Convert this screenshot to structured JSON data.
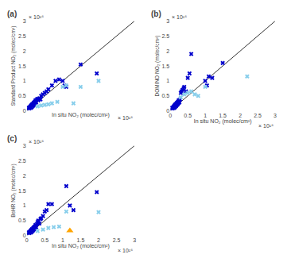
{
  "chart_data": [
    {
      "type": "scatter",
      "title": "(a)",
      "x_label": "In situ NO₂ (molec/cm²)",
      "y_label": "Standard Product NO₂ (molec/cm²)",
      "annotations": [
        "× 10¹⁶",
        "× 10¹⁶"
      ],
      "xlim": [
        0,
        3.0
      ],
      "ylim": [
        0,
        3.0
      ],
      "xticks": [
        0,
        0.5,
        1,
        1.5,
        2,
        2.5,
        3
      ],
      "yticks": [
        0,
        0.5,
        1,
        1.5,
        2,
        2.5,
        3
      ],
      "grid": false,
      "tick_labels": "y",
      "series": [
        {
          "type": "line",
          "color": "#333333",
          "x": [
            0,
            3.0
          ],
          "values": [
            0,
            3.0
          ]
        },
        {
          "type": "scatter",
          "marker": "x",
          "color": "#0000CC",
          "x": [
            0.05,
            0.07,
            0.08,
            0.1,
            0.11,
            0.12,
            0.13,
            0.14,
            0.15,
            0.16,
            0.17,
            0.18,
            0.19,
            0.2,
            0.21,
            0.22,
            0.23,
            0.24,
            0.25,
            0.26,
            0.28,
            0.3,
            0.32,
            0.35,
            0.38,
            0.4,
            0.45,
            0.5,
            0.55,
            0.6,
            0.7,
            0.8,
            0.9,
            1.0,
            1.05,
            1.1,
            1.5,
            1.95
          ],
          "values": [
            0.1,
            0.08,
            0.12,
            0.15,
            0.1,
            0.18,
            0.12,
            0.2,
            0.22,
            0.15,
            0.18,
            0.25,
            0.2,
            0.28,
            0.22,
            0.3,
            0.25,
            0.35,
            0.32,
            0.28,
            0.38,
            0.4,
            0.35,
            0.42,
            0.38,
            0.5,
            0.55,
            0.6,
            0.65,
            0.72,
            0.85,
            1.0,
            1.05,
            1.0,
            0.85,
            0.8,
            1.55,
            1.25
          ]
        },
        {
          "type": "scatter",
          "marker": "x",
          "color": "#87CEEB",
          "x": [
            0.3,
            0.4,
            0.5,
            0.6,
            0.7,
            0.85,
            1.0,
            1.1,
            1.3,
            1.5,
            2.0
          ],
          "values": [
            0.15,
            0.18,
            0.2,
            0.22,
            0.25,
            0.3,
            0.8,
            0.85,
            0.25,
            0.8,
            1.0
          ]
        }
      ]
    },
    {
      "type": "scatter",
      "title": "(b)",
      "x_label": "In situ NO₂ (molec/cm²)",
      "y_label": "DOMINO NO₂ (molec/cm²)",
      "annotations": [
        "× 10¹⁶",
        "× 10¹⁶"
      ],
      "xlim": [
        0,
        3.0
      ],
      "ylim": [
        0,
        3.0
      ],
      "xticks": [
        0,
        0.5,
        1,
        1.5,
        2,
        2.5,
        3
      ],
      "yticks": [
        0,
        0.5,
        1,
        1.5,
        2,
        2.5,
        3
      ],
      "grid": false,
      "series": [
        {
          "type": "line",
          "color": "#333333",
          "x": [
            0,
            3.0
          ],
          "values": [
            0,
            3.0
          ]
        },
        {
          "type": "scatter",
          "marker": "x",
          "color": "#0000CC",
          "x": [
            0.05,
            0.07,
            0.08,
            0.1,
            0.11,
            0.12,
            0.13,
            0.14,
            0.15,
            0.16,
            0.17,
            0.18,
            0.19,
            0.2,
            0.21,
            0.22,
            0.23,
            0.24,
            0.25,
            0.26,
            0.28,
            0.3,
            0.32,
            0.35,
            0.38,
            0.4,
            0.45,
            0.5,
            0.55,
            0.6,
            1.0,
            1.05,
            1.1,
            1.2,
            1.5
          ],
          "values": [
            0.1,
            0.08,
            0.12,
            0.15,
            0.1,
            0.18,
            0.12,
            0.2,
            0.22,
            0.15,
            0.18,
            0.25,
            0.2,
            0.28,
            0.22,
            0.3,
            0.25,
            0.35,
            0.32,
            0.28,
            0.38,
            0.6,
            0.65,
            0.7,
            0.75,
            0.8,
            0.65,
            1.1,
            1.25,
            1.9,
            1.0,
            0.85,
            1.15,
            1.1,
            1.6
          ]
        },
        {
          "type": "scatter",
          "marker": "x",
          "color": "#87CEEB",
          "x": [
            0.3,
            0.4,
            0.5,
            0.6,
            0.7,
            0.8,
            1.0,
            2.2
          ],
          "values": [
            0.45,
            0.55,
            0.6,
            0.65,
            0.55,
            0.5,
            0.8,
            1.15
          ]
        }
      ]
    },
    {
      "type": "scatter",
      "title": "(c)",
      "x_label": "In situ NO₂ (molec/cm²)",
      "y_label": "BeHR NO₂ (molec/cm²)",
      "annotations": [
        "× 10¹⁶",
        "× 10¹⁶"
      ],
      "xlim": [
        0,
        3.0
      ],
      "ylim": [
        0,
        3.0
      ],
      "xticks": [
        0,
        0.5,
        1,
        1.5,
        2,
        2.5,
        3
      ],
      "yticks": [
        0,
        0.5,
        1,
        1.5,
        2,
        2.5,
        3
      ],
      "grid": false,
      "series": [
        {
          "type": "line",
          "color": "#333333",
          "x": [
            0,
            3.0
          ],
          "values": [
            0,
            3.0
          ]
        },
        {
          "type": "scatter",
          "marker": "x",
          "color": "#0000CC",
          "x": [
            0.05,
            0.07,
            0.08,
            0.1,
            0.11,
            0.12,
            0.13,
            0.14,
            0.15,
            0.16,
            0.17,
            0.18,
            0.19,
            0.2,
            0.21,
            0.22,
            0.23,
            0.24,
            0.25,
            0.26,
            0.28,
            0.3,
            0.32,
            0.35,
            0.38,
            0.4,
            0.45,
            0.5,
            0.55,
            0.6,
            0.7,
            1.1,
            1.2,
            1.3,
            1.95
          ],
          "values": [
            0.1,
            0.08,
            0.12,
            0.15,
            0.1,
            0.18,
            0.12,
            0.2,
            0.22,
            0.15,
            0.18,
            0.25,
            0.2,
            0.28,
            0.22,
            0.3,
            0.25,
            0.35,
            0.32,
            0.28,
            0.38,
            0.45,
            0.5,
            0.4,
            0.55,
            0.58,
            0.65,
            0.8,
            0.85,
            1.05,
            1.05,
            1.65,
            1.0,
            0.85,
            1.45
          ]
        },
        {
          "type": "scatter",
          "marker": "x",
          "color": "#87CEEB",
          "x": [
            0.3,
            0.45,
            0.6,
            0.75,
            0.9,
            1.1,
            2.0
          ],
          "values": [
            0.15,
            0.2,
            0.25,
            0.28,
            0.3,
            0.8,
            0.78
          ]
        },
        {
          "type": "scatter",
          "marker": "triangle",
          "color": "#FFA500",
          "x": [
            1.2
          ],
          "values": [
            0.16
          ]
        }
      ]
    }
  ]
}
